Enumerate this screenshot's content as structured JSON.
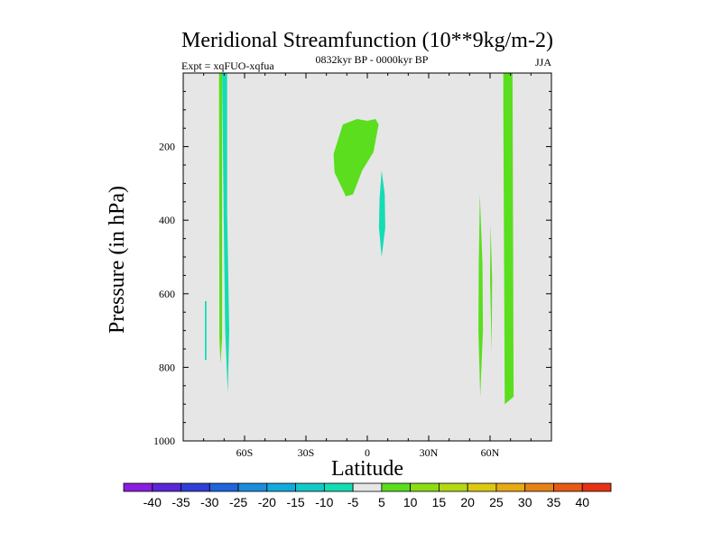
{
  "chart_data": {
    "type": "contour-map",
    "title": "Meridional Streamfunction (10**9kg/m-2)",
    "left_string": "Expt = xqFUO-xqfua",
    "center_string": "0832kyr BP - 0000kyr BP",
    "right_string": "JJA",
    "xlabel": "Latitude",
    "ylabel": "Pressure (in hPa)",
    "xlim": [
      -90,
      90
    ],
    "ylim": [
      1000,
      0
    ],
    "x_tick_values": [
      -60,
      -30,
      0,
      30,
      60
    ],
    "x_tick_labels": [
      "60S",
      "30S",
      "0",
      "30N",
      "60N"
    ],
    "y_tick_values": [
      200,
      400,
      600,
      800,
      1000
    ],
    "y_tick_labels": [
      "200",
      "400",
      "600",
      "800",
      "1000"
    ],
    "background_color": "#e6e6e6",
    "colorbar": {
      "labels": [
        "-40",
        "-35",
        "-30",
        "-25",
        "-20",
        "-15",
        "-10",
        "-5",
        "5",
        "10",
        "15",
        "20",
        "25",
        "30",
        "35",
        "40"
      ],
      "colors": [
        "#8a1ee0",
        "#5a26d8",
        "#2f3ed6",
        "#1e64dc",
        "#1e8cdc",
        "#12aadc",
        "#12c8c8",
        "#14dcb4",
        "#e6e6e6",
        "#5ade1e",
        "#8cdc14",
        "#b4d814",
        "#dcc814",
        "#e6aa14",
        "#e68214",
        "#e65a14",
        "#e63214"
      ]
    },
    "regions": [
      {
        "name": "green-band-west",
        "color": "#5ade1e",
        "polygon": [
          [
            -72.5,
            0
          ],
          [
            -71,
            0
          ],
          [
            -71,
            720
          ],
          [
            -71.8,
            790
          ],
          [
            -72.3,
            720
          ]
        ]
      },
      {
        "name": "cyan-strip-west",
        "color": "#14dcb4",
        "polygon": [
          [
            -71,
            0
          ],
          [
            -68.5,
            0
          ],
          [
            -68.5,
            380
          ],
          [
            -67.5,
            700
          ],
          [
            -68.2,
            870
          ],
          [
            -69.5,
            700
          ],
          [
            -70.2,
            400
          ]
        ]
      },
      {
        "name": "cyan-sliver-far-west",
        "color": "#14dcb4",
        "polygon": [
          [
            -79.4,
            620
          ],
          [
            -78.6,
            620
          ],
          [
            -78.6,
            780
          ],
          [
            -79.4,
            780
          ]
        ]
      },
      {
        "name": "green-blob-upper",
        "color": "#5ade1e",
        "polygon": [
          [
            -16.5,
            220
          ],
          [
            -12,
            140
          ],
          [
            -5,
            125
          ],
          [
            0,
            130
          ],
          [
            4,
            125
          ],
          [
            5.5,
            140
          ],
          [
            3,
            215
          ],
          [
            -2.5,
            265
          ],
          [
            -7,
            330
          ],
          [
            -10.5,
            335
          ],
          [
            -16,
            270
          ]
        ]
      },
      {
        "name": "cyan-lens-center",
        "color": "#14dcb4",
        "polygon": [
          [
            7,
            265
          ],
          [
            8.5,
            330
          ],
          [
            8.8,
            420
          ],
          [
            7,
            500
          ],
          [
            5.7,
            420
          ],
          [
            6,
            340
          ]
        ]
      },
      {
        "name": "green-strip-east-1",
        "color": "#5ade1e",
        "polygon": [
          [
            55,
            330
          ],
          [
            56.3,
            520
          ],
          [
            56.5,
            700
          ],
          [
            55.2,
            880
          ],
          [
            54.3,
            700
          ],
          [
            54.5,
            520
          ]
        ]
      },
      {
        "name": "green-strip-east-2",
        "color": "#5ade1e",
        "polygon": [
          [
            60.2,
            410
          ],
          [
            61,
            560
          ],
          [
            60.8,
            760
          ],
          [
            60,
            560
          ]
        ]
      },
      {
        "name": "green-band-east",
        "color": "#5ade1e",
        "polygon": [
          [
            66.5,
            0
          ],
          [
            71,
            0
          ],
          [
            71.5,
            880
          ],
          [
            67.2,
            900
          ],
          [
            66.5,
            100
          ]
        ]
      }
    ]
  }
}
